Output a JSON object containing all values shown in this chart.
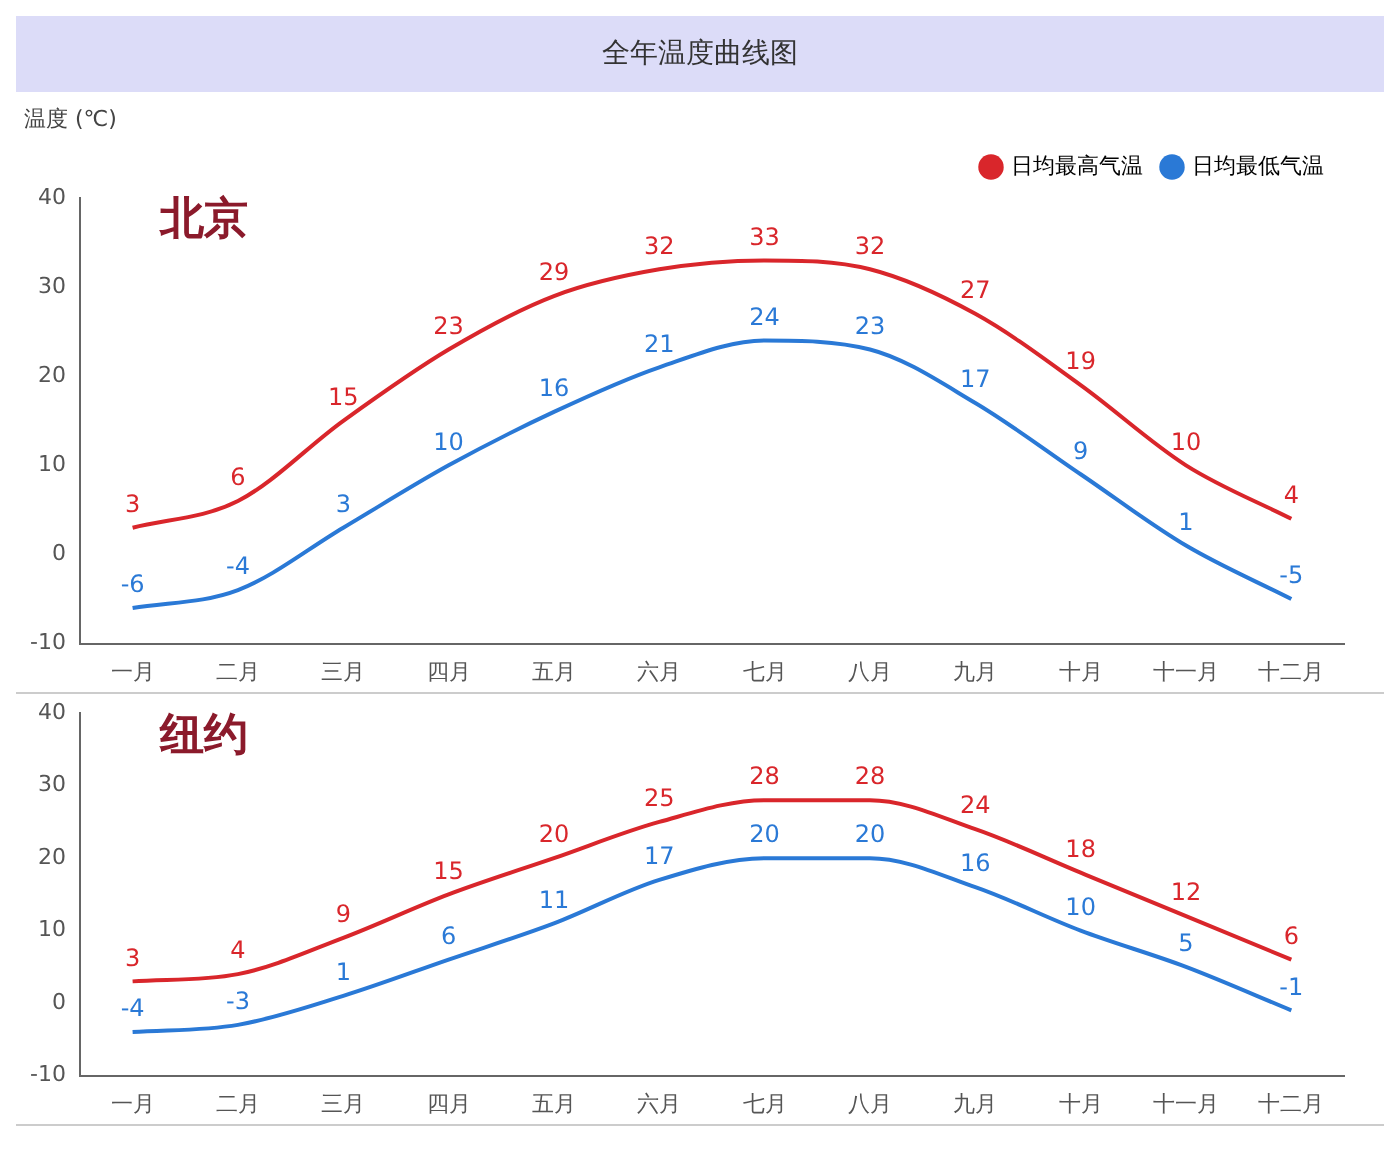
{
  "chart_data": [
    {
      "type": "line",
      "title": "全年温度曲线图",
      "ylabel": "温度 (℃)",
      "annotations": [
        "北京"
      ],
      "categories": [
        "一月",
        "二月",
        "三月",
        "四月",
        "五月",
        "六月",
        "七月",
        "八月",
        "九月",
        "十月",
        "十一月",
        "十二月"
      ],
      "series": [
        {
          "name": "日均最高气温",
          "color": "#d9262b",
          "values": [
            3,
            6,
            15,
            23,
            29,
            32,
            33,
            32,
            27,
            19,
            10,
            4
          ]
        },
        {
          "name": "日均最低气温",
          "color": "#2a79d6",
          "values": [
            -6,
            -4,
            3,
            10,
            16,
            21,
            24,
            23,
            17,
            9,
            1,
            -5
          ]
        }
      ],
      "ylim": [
        -10,
        40
      ],
      "yticks": [
        -10,
        0,
        10,
        20,
        30,
        40
      ],
      "grid": false,
      "legend": "top right",
      "marker": "none",
      "data_labels": true
    },
    {
      "type": "line",
      "annotations": [
        "纽约"
      ],
      "categories": [
        "一月",
        "二月",
        "三月",
        "四月",
        "五月",
        "六月",
        "七月",
        "八月",
        "九月",
        "十月",
        "十一月",
        "十二月"
      ],
      "series": [
        {
          "color": "#d9262b",
          "values": [
            3,
            4,
            9,
            15,
            20,
            25,
            28,
            28,
            24,
            18,
            12,
            6
          ]
        },
        {
          "color": "#2a79d6",
          "values": [
            -4,
            -3,
            1,
            6,
            11,
            17,
            20,
            20,
            16,
            10,
            5,
            -1
          ]
        }
      ],
      "ylim": [
        -10,
        40
      ],
      "yticks": [
        -10,
        0,
        10,
        20,
        30,
        40
      ],
      "grid": false,
      "marker": "none",
      "data_labels": true
    }
  ]
}
